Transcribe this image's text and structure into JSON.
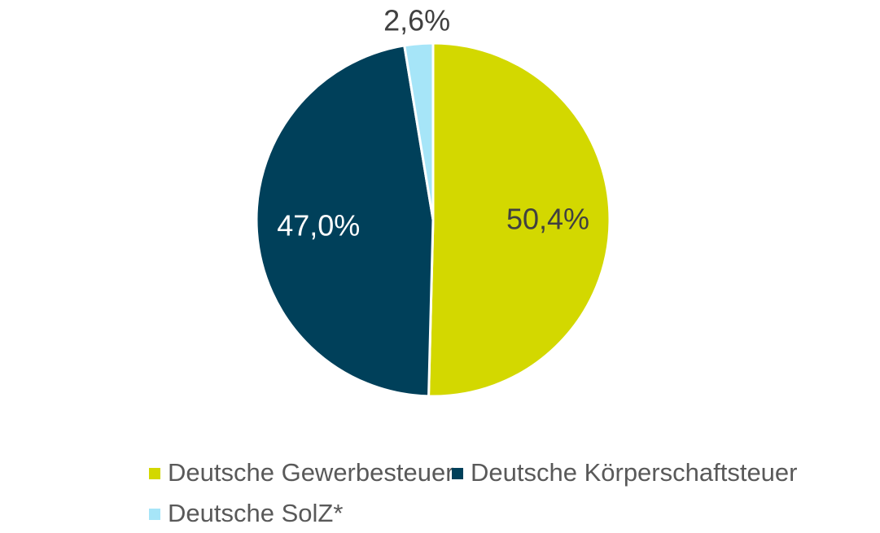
{
  "chart_data": {
    "type": "pie",
    "categories": [
      "Deutsche Gewerbesteuer",
      "Deutsche Körperschaftsteuer",
      "Deutsche SolZ*"
    ],
    "values": [
      50.4,
      47.0,
      2.6
    ],
    "value_labels": [
      "50,4%",
      "47,0%",
      "2,6%"
    ],
    "colors": [
      "#d3d800",
      "#00405a",
      "#a6e5f8"
    ],
    "legend": "bottom"
  }
}
